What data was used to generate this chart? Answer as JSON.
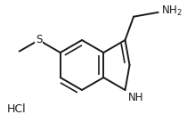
{
  "background_color": "#ffffff",
  "line_color": "#1a1a1a",
  "line_width": 1.4,
  "text_color": "#1a1a1a",
  "font_size": 8.5,
  "hcl_label": "HCl",
  "nh2_label": "NH₂",
  "s_label": "S",
  "nh_label": "NH"
}
